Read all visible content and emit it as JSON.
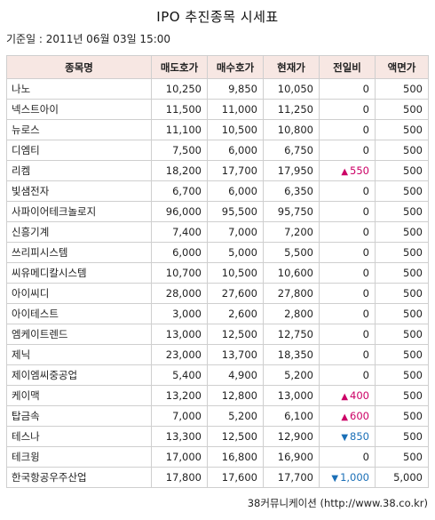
{
  "title": "IPO 추진종목 시세표",
  "base_date": "기준일 : 2011년 06월 03일 15:00",
  "columns": [
    "종목명",
    "매도호가",
    "매수호가",
    "현재가",
    "전일비",
    "액면가"
  ],
  "colors": {
    "up": "#cc0066",
    "down": "#1a6fb7",
    "header_bg": "#f7e7e3"
  },
  "rows": [
    {
      "name": "나노",
      "ask": "10,250",
      "bid": "9,850",
      "price": "10,050",
      "change": "0",
      "dir": "",
      "par": "500"
    },
    {
      "name": "넥스트아이",
      "ask": "11,500",
      "bid": "11,000",
      "price": "11,250",
      "change": "0",
      "dir": "",
      "par": "500"
    },
    {
      "name": "뉴로스",
      "ask": "11,100",
      "bid": "10,500",
      "price": "10,800",
      "change": "0",
      "dir": "",
      "par": "500"
    },
    {
      "name": "디엠티",
      "ask": "7,500",
      "bid": "6,000",
      "price": "6,750",
      "change": "0",
      "dir": "",
      "par": "500"
    },
    {
      "name": "리켐",
      "ask": "18,200",
      "bid": "17,700",
      "price": "17,950",
      "change": "550",
      "dir": "up",
      "par": "500"
    },
    {
      "name": "빛샘전자",
      "ask": "6,700",
      "bid": "6,000",
      "price": "6,350",
      "change": "0",
      "dir": "",
      "par": "500"
    },
    {
      "name": "사파이어테크놀로지",
      "ask": "96,000",
      "bid": "95,500",
      "price": "95,750",
      "change": "0",
      "dir": "",
      "par": "500"
    },
    {
      "name": "신흥기계",
      "ask": "7,400",
      "bid": "7,000",
      "price": "7,200",
      "change": "0",
      "dir": "",
      "par": "500"
    },
    {
      "name": "쓰리피시스템",
      "ask": "6,000",
      "bid": "5,000",
      "price": "5,500",
      "change": "0",
      "dir": "",
      "par": "500"
    },
    {
      "name": "씨유메디칼시스템",
      "ask": "10,700",
      "bid": "10,500",
      "price": "10,600",
      "change": "0",
      "dir": "",
      "par": "500"
    },
    {
      "name": "아이씨디",
      "ask": "28,000",
      "bid": "27,600",
      "price": "27,800",
      "change": "0",
      "dir": "",
      "par": "500"
    },
    {
      "name": "아이테스트",
      "ask": "3,000",
      "bid": "2,600",
      "price": "2,800",
      "change": "0",
      "dir": "",
      "par": "500"
    },
    {
      "name": "엠케이트렌드",
      "ask": "13,000",
      "bid": "12,500",
      "price": "12,750",
      "change": "0",
      "dir": "",
      "par": "500"
    },
    {
      "name": "제닉",
      "ask": "23,000",
      "bid": "13,700",
      "price": "18,350",
      "change": "0",
      "dir": "",
      "par": "500"
    },
    {
      "name": "제이엠씨중공업",
      "ask": "5,400",
      "bid": "4,900",
      "price": "5,200",
      "change": "0",
      "dir": "",
      "par": "500"
    },
    {
      "name": "케이맥",
      "ask": "13,200",
      "bid": "12,800",
      "price": "13,000",
      "change": "400",
      "dir": "up",
      "par": "500"
    },
    {
      "name": "탑금속",
      "ask": "7,000",
      "bid": "5,200",
      "price": "6,100",
      "change": "600",
      "dir": "up",
      "par": "500"
    },
    {
      "name": "테스나",
      "ask": "13,300",
      "bid": "12,500",
      "price": "12,900",
      "change": "850",
      "dir": "down",
      "par": "500"
    },
    {
      "name": "테크윙",
      "ask": "17,000",
      "bid": "16,800",
      "price": "16,900",
      "change": "0",
      "dir": "",
      "par": "500"
    },
    {
      "name": "한국항공우주산업",
      "ask": "17,800",
      "bid": "17,600",
      "price": "17,700",
      "change": "1,000",
      "dir": "down",
      "par": "5,000"
    }
  ],
  "footer": "38커뮤니케이션 (http://www.38.co.kr)"
}
